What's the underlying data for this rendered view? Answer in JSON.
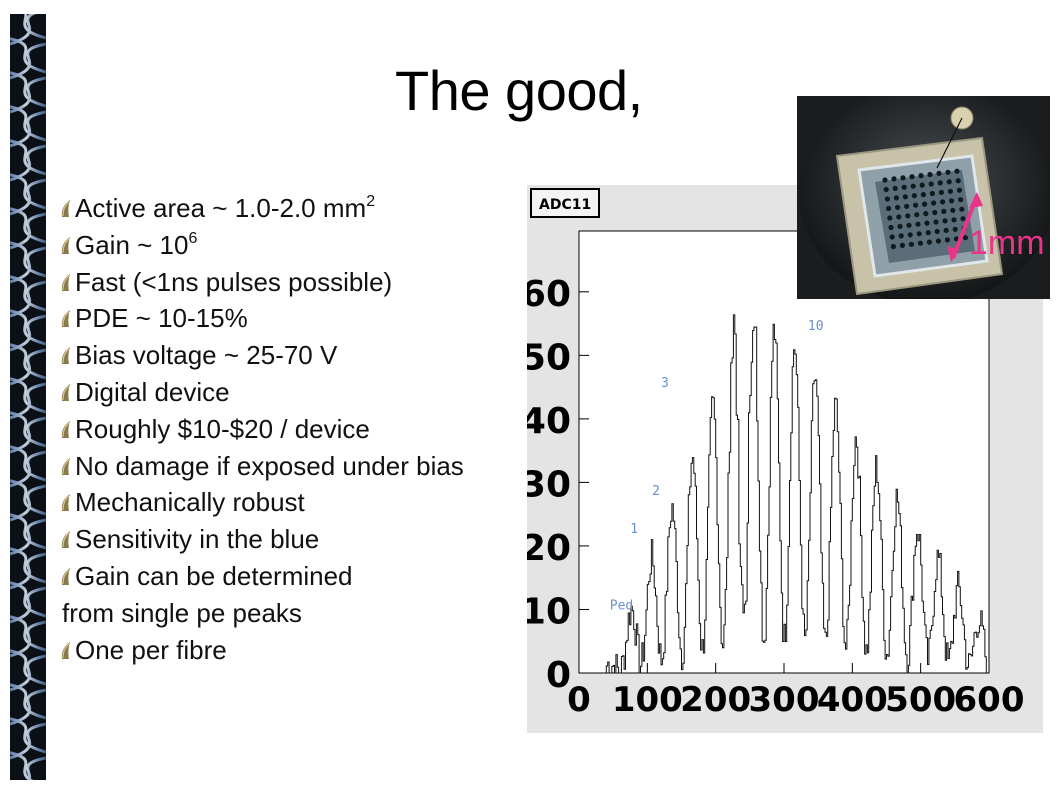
{
  "slide": {
    "title": "The good,",
    "bullets": [
      {
        "text": "Active area ~ 1.0-2.0 mm",
        "sup": "2",
        "bullet": true
      },
      {
        "text": "Gain ~ 10",
        "sup": "6",
        "bullet": true
      },
      {
        "text": "Fast (<1ns pulses possible)",
        "bullet": true
      },
      {
        "text": "PDE ~ 10-15%",
        "bullet": true
      },
      {
        "text": "Bias voltage ~ 25-70 V",
        "bullet": true
      },
      {
        "text": "Digital device",
        "bullet": true
      },
      {
        "text": "Roughly $10-$20 / device",
        "bullet": true
      },
      {
        "text": "No damage if exposed under bias",
        "bullet": true
      },
      {
        "text": "Mechanically robust",
        "bullet": true
      },
      {
        "text": "Sensitivity in the blue",
        "bullet": true
      },
      {
        "text": "Gain can be determined",
        "bullet": true
      },
      {
        "text": "from single pe peaks",
        "bullet": false
      },
      {
        "text": "One per fibre",
        "bullet": true
      }
    ]
  },
  "histogram": {
    "title": "ADC11",
    "xlim": [
      0,
      600
    ],
    "ylim": [
      0,
      68
    ],
    "xticks": [
      "0",
      "100",
      "200",
      "300",
      "400",
      "500",
      "600"
    ],
    "yticks": [
      "0",
      "10",
      "20",
      "30",
      "40",
      "50",
      "60"
    ],
    "peak_labels": [
      {
        "text": "Ped",
        "x": 45,
        "y": 10
      },
      {
        "text": "1",
        "x": 75,
        "y": 22
      },
      {
        "text": "2",
        "x": 107,
        "y": 28
      },
      {
        "text": "3",
        "x": 120,
        "y": 45
      },
      {
        "text": "10",
        "x": 335,
        "y": 54
      }
    ]
  },
  "photo": {
    "scale_label": "1mm",
    "colors": {
      "accent": "#e8358a",
      "board": "#c8c3a8",
      "chip": "#5a6d78"
    }
  },
  "colors": {
    "peak_label": "#6b8fd6",
    "strip": "#0b1016",
    "bullet": "#8a7a4a"
  }
}
